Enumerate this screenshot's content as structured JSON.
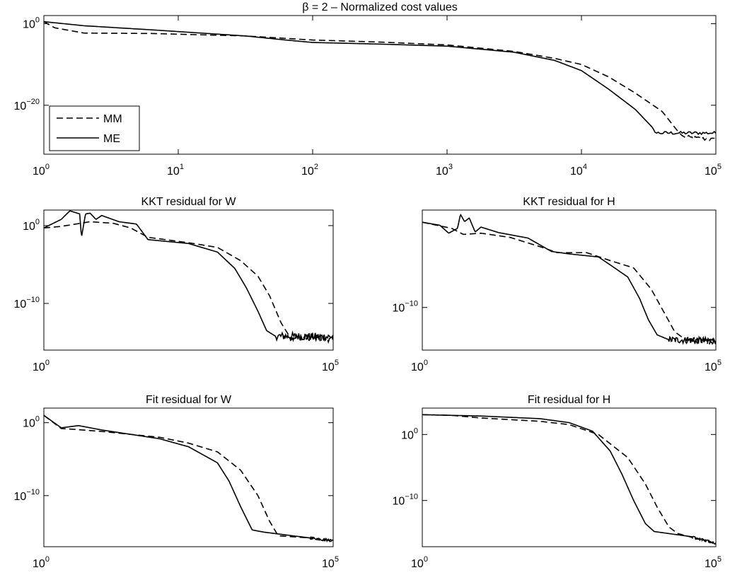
{
  "chart_data": [
    {
      "type": "line",
      "id": "cost",
      "title": "β = 2 – Normalized cost values",
      "xlabel": "",
      "ylabel": "",
      "xscale": "log",
      "yscale": "log",
      "xlim_log10": [
        0,
        5
      ],
      "ylim_log10": [
        2,
        -32
      ],
      "xticks": [
        {
          "base": "10",
          "exp": "0"
        },
        {
          "base": "10",
          "exp": "1"
        },
        {
          "base": "10",
          "exp": "2"
        },
        {
          "base": "10",
          "exp": "3"
        },
        {
          "base": "10",
          "exp": "4"
        },
        {
          "base": "10",
          "exp": "5"
        }
      ],
      "yticks": [
        {
          "base": "10",
          "exp": "0",
          "log": 0
        },
        {
          "base": "10",
          "exp": "−20",
          "log": -20
        }
      ],
      "legend": {
        "position": "bottom-left",
        "entries": [
          "MM",
          "ME"
        ]
      },
      "series": [
        {
          "name": "MM",
          "style": "dashed",
          "points": [
            [
              0,
              0.5
            ],
            [
              0.08,
              -1.0
            ],
            [
              0.3,
              -2.3
            ],
            [
              0.8,
              -2.4
            ],
            [
              1.5,
              -3.0
            ],
            [
              2.0,
              -4.0
            ],
            [
              2.5,
              -4.5
            ],
            [
              3.0,
              -5.2
            ],
            [
              3.5,
              -6.8
            ],
            [
              3.8,
              -8.5
            ],
            [
              4.0,
              -10.0
            ],
            [
              4.2,
              -13.0
            ],
            [
              4.4,
              -17.0
            ],
            [
              4.6,
              -21.5
            ],
            [
              4.72,
              -26.5
            ],
            [
              4.76,
              -27.8
            ],
            [
              5.0,
              -28.5
            ]
          ],
          "noise": 1.0
        },
        {
          "name": "ME",
          "style": "solid",
          "points": [
            [
              0,
              0.5
            ],
            [
              0.3,
              -0.5
            ],
            [
              0.8,
              -1.5
            ],
            [
              1.5,
              -3.0
            ],
            [
              1.8,
              -4.0
            ],
            [
              2.0,
              -4.6
            ],
            [
              2.5,
              -5.0
            ],
            [
              3.0,
              -5.5
            ],
            [
              3.5,
              -7.0
            ],
            [
              3.8,
              -9.0
            ],
            [
              4.0,
              -11.5
            ],
            [
              4.2,
              -16.0
            ],
            [
              4.4,
              -21.0
            ],
            [
              4.53,
              -25.5
            ],
            [
              4.55,
              -26.8
            ],
            [
              5.0,
              -26.8
            ]
          ],
          "noise": 0.8
        }
      ]
    },
    {
      "type": "line",
      "id": "kkt-w",
      "title": "KKT residual for W",
      "xlabel": "",
      "ylabel": "",
      "xscale": "log",
      "yscale": "log",
      "xlim_log10": [
        0,
        5
      ],
      "ylim_log10": [
        2,
        -16
      ],
      "xticks": [
        {
          "base": "10",
          "exp": "0"
        },
        {
          "base": "10",
          "exp": "5"
        }
      ],
      "yticks": [
        {
          "base": "10",
          "exp": "0",
          "log": 0
        },
        {
          "base": "10",
          "exp": "−10",
          "log": -10
        }
      ],
      "series": [
        {
          "name": "MM",
          "style": "dashed",
          "points": [
            [
              0,
              -0.3
            ],
            [
              0.3,
              -0.1
            ],
            [
              0.8,
              0.5
            ],
            [
              1.2,
              0.3
            ],
            [
              1.5,
              -0.3
            ],
            [
              1.8,
              -1.5
            ],
            [
              2.5,
              -2.2
            ],
            [
              3.0,
              -2.8
            ],
            [
              3.4,
              -4.5
            ],
            [
              3.7,
              -6.5
            ],
            [
              3.9,
              -9.0
            ],
            [
              4.1,
              -12.5
            ],
            [
              4.25,
              -14.3
            ],
            [
              5.0,
              -14.6
            ]
          ],
          "noise": 0.8
        },
        {
          "name": "ME",
          "style": "solid",
          "points": [
            [
              0,
              -0.3
            ],
            [
              0.3,
              0.8
            ],
            [
              0.45,
              1.9
            ],
            [
              0.62,
              1.5
            ],
            [
              0.65,
              -1.5
            ],
            [
              0.72,
              1.5
            ],
            [
              0.8,
              1.6
            ],
            [
              0.9,
              0.8
            ],
            [
              1.0,
              1.3
            ],
            [
              1.3,
              0.5
            ],
            [
              1.6,
              0.2
            ],
            [
              1.8,
              -1.8
            ],
            [
              2.5,
              -2.3
            ],
            [
              3.0,
              -3.4
            ],
            [
              3.3,
              -5.5
            ],
            [
              3.5,
              -8.0
            ],
            [
              3.7,
              -11.0
            ],
            [
              3.85,
              -13.5
            ],
            [
              4.0,
              -14.2
            ],
            [
              5.0,
              -14.3
            ]
          ],
          "noise": 1.0
        }
      ]
    },
    {
      "type": "line",
      "id": "kkt-h",
      "title": "KKT residual for H",
      "xlabel": "",
      "ylabel": "",
      "xscale": "log",
      "yscale": "log",
      "xlim_log10": [
        0,
        5
      ],
      "ylim_log10": [
        6,
        -17
      ],
      "xticks": [
        {
          "base": "10",
          "exp": "0"
        },
        {
          "base": "10",
          "exp": "5"
        }
      ],
      "yticks": [
        {
          "base": "10",
          "exp": "−10",
          "log": -10
        }
      ],
      "series": [
        {
          "name": "MM",
          "style": "dashed",
          "points": [
            [
              0,
              4.0
            ],
            [
              0.5,
              3.0
            ],
            [
              0.7,
              2.0
            ],
            [
              1.0,
              2.2
            ],
            [
              1.5,
              1.5
            ],
            [
              2.0,
              0.0
            ],
            [
              2.3,
              -1.0
            ],
            [
              2.8,
              -1.0
            ],
            [
              3.2,
              -2.3
            ],
            [
              3.6,
              -3.5
            ],
            [
              3.9,
              -7.0
            ],
            [
              4.1,
              -10.5
            ],
            [
              4.3,
              -14.0
            ],
            [
              4.5,
              -15.4
            ],
            [
              5.0,
              -15.6
            ]
          ],
          "noise": 1.0
        },
        {
          "name": "ME",
          "style": "solid",
          "points": [
            [
              0,
              4.0
            ],
            [
              0.3,
              3.5
            ],
            [
              0.45,
              2.2
            ],
            [
              0.6,
              3.0
            ],
            [
              0.65,
              5.3
            ],
            [
              0.72,
              4.1
            ],
            [
              0.8,
              4.7
            ],
            [
              0.9,
              2.4
            ],
            [
              1.0,
              3.2
            ],
            [
              1.3,
              2.3
            ],
            [
              1.8,
              1.4
            ],
            [
              2.2,
              -0.8
            ],
            [
              2.5,
              -1.2
            ],
            [
              3.0,
              -1.7
            ],
            [
              3.2,
              -3.0
            ],
            [
              3.5,
              -5.0
            ],
            [
              3.7,
              -8.5
            ],
            [
              3.85,
              -12.0
            ],
            [
              4.0,
              -14.5
            ],
            [
              4.2,
              -15.3
            ],
            [
              5.0,
              -15.5
            ]
          ],
          "noise": 1.1
        }
      ]
    },
    {
      "type": "line",
      "id": "fit-w",
      "title": "Fit residual for W",
      "xlabel": "",
      "ylabel": "",
      "xscale": "log",
      "yscale": "log",
      "xlim_log10": [
        0,
        5
      ],
      "ylim_log10": [
        2,
        -17
      ],
      "xticks": [
        {
          "base": "10",
          "exp": "0"
        },
        {
          "base": "10",
          "exp": "5"
        }
      ],
      "yticks": [
        {
          "base": "10",
          "exp": "0",
          "log": 0
        },
        {
          "base": "10",
          "exp": "−10",
          "log": -10
        }
      ],
      "series": [
        {
          "name": "MM",
          "style": "dashed",
          "points": [
            [
              0,
              1.0
            ],
            [
              0.3,
              -0.8
            ],
            [
              0.5,
              -0.9
            ],
            [
              1.0,
              -1.2
            ],
            [
              2.0,
              -2.0
            ],
            [
              2.5,
              -2.8
            ],
            [
              3.0,
              -4.0
            ],
            [
              3.4,
              -6.5
            ],
            [
              3.7,
              -10.0
            ],
            [
              3.9,
              -13.5
            ],
            [
              4.05,
              -15.5
            ],
            [
              4.6,
              -15.8
            ],
            [
              5.0,
              -16.2
            ]
          ],
          "noise": 0.3
        },
        {
          "name": "ME",
          "style": "solid",
          "points": [
            [
              0,
              1.0
            ],
            [
              0.3,
              -0.7
            ],
            [
              0.6,
              -0.4
            ],
            [
              1.0,
              -1.0
            ],
            [
              2.0,
              -2.2
            ],
            [
              2.5,
              -3.3
            ],
            [
              3.0,
              -5.5
            ],
            [
              3.2,
              -8.0
            ],
            [
              3.4,
              -11.5
            ],
            [
              3.6,
              -14.7
            ],
            [
              3.8,
              -15.0
            ],
            [
              4.6,
              -15.8
            ],
            [
              5.0,
              -16.2
            ]
          ],
          "noise": 0.3
        }
      ]
    },
    {
      "type": "line",
      "id": "fit-h",
      "title": "Fit residual for H",
      "xlabel": "",
      "ylabel": "",
      "xscale": "log",
      "yscale": "log",
      "xlim_log10": [
        0,
        5
      ],
      "ylim_log10": [
        4,
        -17
      ],
      "xticks": [
        {
          "base": "10",
          "exp": "0"
        },
        {
          "base": "10",
          "exp": "5"
        }
      ],
      "yticks": [
        {
          "base": "10",
          "exp": "0",
          "log": 0
        },
        {
          "base": "10",
          "exp": "−10",
          "log": -10
        }
      ],
      "series": [
        {
          "name": "MM",
          "style": "dashed",
          "points": [
            [
              0,
              3.0
            ],
            [
              0.5,
              2.9
            ],
            [
              1.0,
              2.5
            ],
            [
              2.0,
              2.0
            ],
            [
              2.5,
              1.5
            ],
            [
              3.0,
              0.0
            ],
            [
              3.5,
              -3.5
            ],
            [
              3.8,
              -7.5
            ],
            [
              4.0,
              -11.0
            ],
            [
              4.2,
              -14.0
            ],
            [
              4.35,
              -15.0
            ],
            [
              4.6,
              -15.6
            ],
            [
              5.0,
              -16.5
            ]
          ],
          "noise": 0.3
        },
        {
          "name": "ME",
          "style": "solid",
          "points": [
            [
              0,
              3.0
            ],
            [
              0.5,
              2.9
            ],
            [
              1.0,
              2.8
            ],
            [
              2.0,
              2.4
            ],
            [
              2.5,
              1.8
            ],
            [
              2.9,
              0.5
            ],
            [
              3.2,
              -2.5
            ],
            [
              3.4,
              -6.0
            ],
            [
              3.6,
              -10.0
            ],
            [
              3.8,
              -13.5
            ],
            [
              3.95,
              -14.7
            ],
            [
              4.6,
              -15.5
            ],
            [
              5.0,
              -16.5
            ]
          ],
          "noise": 0.3
        }
      ]
    }
  ]
}
